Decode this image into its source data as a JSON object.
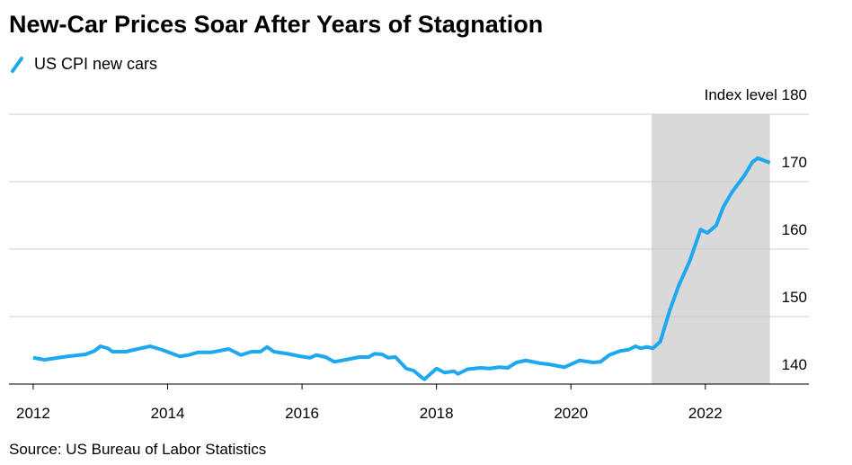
{
  "chart_data": {
    "type": "line",
    "title": "New-Car Prices Soar After Years of Stagnation",
    "source": "Source: US Bureau of Labor Statistics",
    "x": [
      2012.0,
      2012.17,
      2012.37,
      2012.51,
      2012.78,
      2012.91,
      2013.0,
      2013.11,
      2013.18,
      2013.38,
      2013.51,
      2013.74,
      2013.91,
      2014.18,
      2014.31,
      2014.45,
      2014.65,
      2014.91,
      2015.09,
      2015.25,
      2015.38,
      2015.48,
      2015.58,
      2015.78,
      2015.98,
      2016.12,
      2016.21,
      2016.35,
      2016.48,
      2016.65,
      2016.85,
      2016.99,
      2017.08,
      2017.19,
      2017.28,
      2017.39,
      2017.55,
      2017.66,
      2017.79,
      2017.82,
      2018.0,
      2018.12,
      2018.26,
      2018.32,
      2018.46,
      2018.66,
      2018.79,
      2018.93,
      2019.06,
      2019.19,
      2019.33,
      2019.53,
      2019.69,
      2019.9,
      2019.95,
      2020.13,
      2020.33,
      2020.44,
      2020.57,
      2020.73,
      2020.86,
      2020.96,
      2021.04,
      2021.13,
      2021.22,
      2021.33,
      2021.47,
      2021.6,
      2021.77,
      2021.93,
      2022.03,
      2022.16,
      2022.27,
      2022.4,
      2022.58,
      2022.7,
      2022.78,
      2022.96
    ],
    "series": [
      {
        "name": "US CPI new cars",
        "color": "#1ea8f0",
        "values": [
          143.9,
          143.6,
          143.9,
          144.1,
          144.4,
          144.9,
          145.6,
          145.3,
          144.8,
          144.8,
          145.1,
          145.6,
          145.1,
          144.1,
          144.3,
          144.7,
          144.7,
          145.2,
          144.3,
          144.8,
          144.8,
          145.5,
          144.8,
          144.5,
          144.1,
          143.9,
          144.3,
          144.0,
          143.3,
          143.6,
          144.0,
          144.0,
          144.5,
          144.4,
          143.9,
          144.0,
          142.3,
          142.0,
          140.9,
          140.7,
          142.3,
          141.7,
          141.9,
          141.5,
          142.2,
          142.4,
          142.3,
          142.5,
          142.4,
          143.2,
          143.5,
          143.1,
          142.9,
          142.5,
          142.7,
          143.5,
          143.2,
          143.3,
          144.3,
          144.9,
          145.1,
          145.6,
          145.3,
          145.5,
          145.3,
          146.3,
          150.9,
          154.5,
          158.3,
          162.9,
          162.4,
          163.5,
          166.3,
          168.5,
          170.9,
          172.9,
          173.5,
          172.8
        ]
      }
    ],
    "highlight": [
      2021.2,
      2022.96
    ],
    "highlight_color": "#d9d9d9",
    "xlim": [
      2011.64,
      2023.54
    ],
    "xticks": [
      2012,
      2014,
      2016,
      2018,
      2020,
      2022
    ],
    "ylim": [
      140,
      180
    ],
    "yticks": [
      140,
      150,
      160,
      170,
      {
        "value": 180,
        "label": "Index level 180"
      }
    ],
    "grid": true
  }
}
